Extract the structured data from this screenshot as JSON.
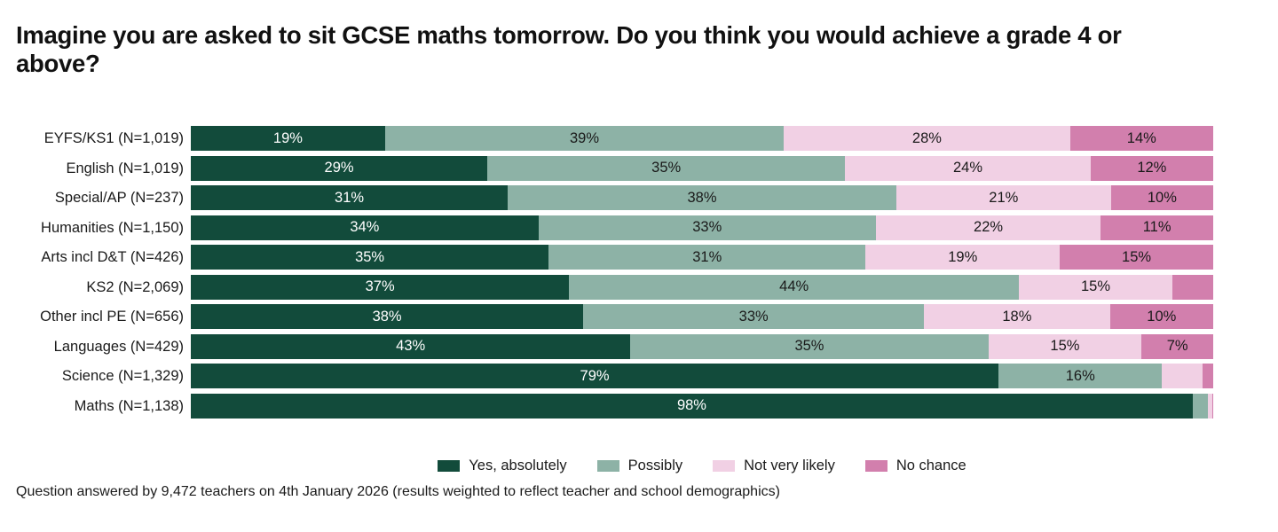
{
  "title": {
    "line1": "Imagine you are asked to sit GCSE maths tomorrow. Do you think you would achieve a grade 4 or",
    "line2": "above?"
  },
  "footnote": "Question answered by 9,472 teachers on 4th January 2026 (results weighted to reflect teacher and school demographics)",
  "legend": {
    "items": [
      {
        "label": "Yes, absolutely",
        "color": "#124B3B"
      },
      {
        "label": "Possibly",
        "color": "#8DB2A6"
      },
      {
        "label": "Not very likely",
        "color": "#F1D0E4"
      },
      {
        "label": "No chance",
        "color": "#D27FAD"
      }
    ]
  },
  "chart_data": {
    "type": "bar",
    "orientation": "horizontal",
    "stacked": true,
    "unit": "percent",
    "xlim": [
      0,
      100
    ],
    "grid": false,
    "legend_position": "bottom-center",
    "series_names": [
      "Yes, absolutely",
      "Possibly",
      "Not very likely",
      "No chance"
    ],
    "series_colors": [
      "#124B3B",
      "#8DB2A6",
      "#F1D0E4",
      "#D27FAD"
    ],
    "categories": [
      "EYFS/KS1 (N=1,019)",
      "English (N=1,019)",
      "Special/AP (N=237)",
      "Humanities (N=1,150)",
      "Arts incl D&T (N=426)",
      "KS2 (N=2,069)",
      "Other incl PE (N=656)",
      "Languages (N=429)",
      "Science (N=1,329)",
      "Maths (N=1,138)"
    ],
    "rows": [
      {
        "category": "EYFS/KS1 (N=1,019)",
        "values": [
          19,
          39,
          28,
          14
        ],
        "labels": [
          "19%",
          "39%",
          "28%",
          "14%"
        ]
      },
      {
        "category": "English (N=1,019)",
        "values": [
          29,
          35,
          24,
          12
        ],
        "labels": [
          "29%",
          "35%",
          "24%",
          "12%"
        ]
      },
      {
        "category": "Special/AP (N=237)",
        "values": [
          31,
          38,
          21,
          10
        ],
        "labels": [
          "31%",
          "38%",
          "21%",
          "10%"
        ]
      },
      {
        "category": "Humanities (N=1,150)",
        "values": [
          34,
          33,
          22,
          11
        ],
        "labels": [
          "34%",
          "33%",
          "22%",
          "11%"
        ]
      },
      {
        "category": "Arts incl D&T (N=426)",
        "values": [
          35,
          31,
          19,
          15
        ],
        "labels": [
          "35%",
          "31%",
          "19%",
          "15%"
        ]
      },
      {
        "category": "KS2 (N=2,069)",
        "values": [
          37,
          44,
          15,
          4
        ],
        "labels": [
          "37%",
          "44%",
          "15%",
          ""
        ]
      },
      {
        "category": "Other incl PE (N=656)",
        "values": [
          38,
          33,
          18,
          10
        ],
        "labels": [
          "38%",
          "33%",
          "18%",
          "10%"
        ]
      },
      {
        "category": "Languages (N=429)",
        "values": [
          43,
          35,
          15,
          7
        ],
        "labels": [
          "43%",
          "35%",
          "15%",
          "7%"
        ]
      },
      {
        "category": "Science (N=1,329)",
        "values": [
          79,
          16,
          4,
          1
        ],
        "labels": [
          "79%",
          "16%",
          "",
          ""
        ]
      },
      {
        "category": "Maths (N=1,138)",
        "values": [
          98,
          1.5,
          0.4,
          0.1
        ],
        "labels": [
          "98%",
          "",
          "",
          ""
        ]
      }
    ]
  }
}
